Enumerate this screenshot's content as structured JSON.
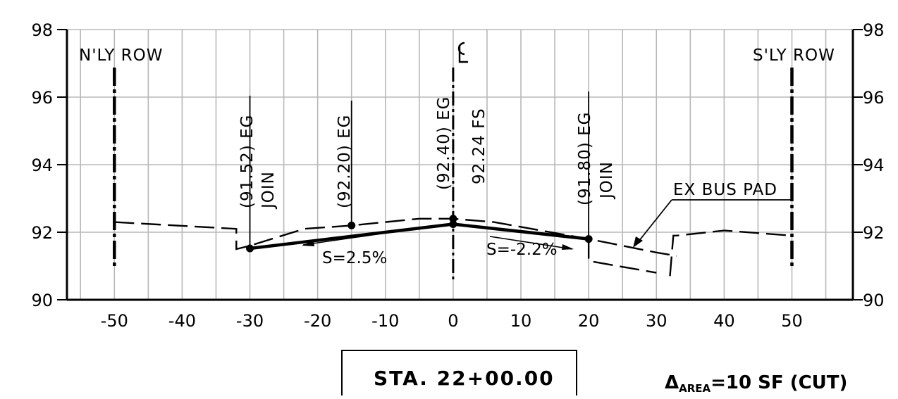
{
  "chart_data": {
    "type": "line",
    "xlim": [
      -57,
      59
    ],
    "ylim": [
      90,
      98
    ],
    "x_ticks": [
      -50,
      -40,
      -30,
      -20,
      -10,
      0,
      10,
      20,
      30,
      40,
      50
    ],
    "y_ticks": [
      90,
      92,
      94,
      96,
      98
    ],
    "x_tick_labels": [
      "-50",
      "-40",
      "-30",
      "-20",
      "-10",
      "0",
      "10",
      "20",
      "30",
      "40",
      "50"
    ],
    "y_tick_labels": [
      "90",
      "92",
      "94",
      "96",
      "98"
    ],
    "grid": true,
    "series": [
      {
        "style": "dashed",
        "x": [
          -50,
          -32,
          -32,
          -30,
          -22,
          -15,
          -5,
          0,
          6,
          20,
          30,
          33
        ],
        "y": [
          92.3,
          92.1,
          91.5,
          91.6,
          92.1,
          92.2,
          92.4,
          92.4,
          92.3,
          91.8,
          91.4,
          91.3
        ]
      },
      {
        "style": "dashed",
        "x": [
          20,
          20,
          30
        ],
        "y": [
          91.8,
          91.15,
          90.8
        ]
      },
      {
        "style": "dashed",
        "x": [
          32,
          32.5,
          33,
          40,
          50
        ],
        "y": [
          90.7,
          91.9,
          91.9,
          92.05,
          91.9
        ]
      },
      {
        "style": "thick",
        "x": [
          -30,
          0,
          20
        ],
        "y": [
          91.52,
          92.24,
          91.8
        ]
      }
    ],
    "points": [
      {
        "x": -30,
        "y": 91.52
      },
      {
        "x": -15,
        "y": 92.2
      },
      {
        "x": 0,
        "y": 92.4
      },
      {
        "x": 0,
        "y": 92.24
      },
      {
        "x": 20,
        "y": 91.8
      }
    ],
    "labels": {
      "n_row": "N'LY ROW",
      "s_row": "S'LY ROW",
      "cl": "CL",
      "eg_1": "(91.52) EG",
      "join_1": "JOIN",
      "eg_2": "(92.20) EG",
      "eg_3": "(92.40) EG",
      "fs_3": "92.24 FS",
      "eg_4": "(91.80) EG",
      "join_4": "JOIN",
      "bus_pad": "EX BUS PAD",
      "slope_left": "S=2.5%",
      "slope_right": "S=-2.2%",
      "station": "STA. 22+00.00",
      "area_prefix": "Δ",
      "area_sub": "AREA",
      "area_value": "=10 SF (CUT)"
    }
  }
}
